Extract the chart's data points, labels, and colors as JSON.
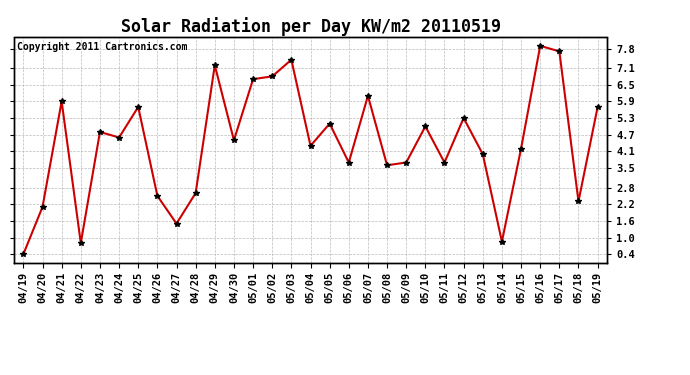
{
  "title": "Solar Radiation per Day KW/m2 20110519",
  "copyright": "Copyright 2011 Cartronics.com",
  "dates": [
    "04/19",
    "04/20",
    "04/21",
    "04/22",
    "04/23",
    "04/24",
    "04/25",
    "04/26",
    "04/27",
    "04/28",
    "04/29",
    "04/30",
    "05/01",
    "05/02",
    "05/03",
    "05/04",
    "05/05",
    "05/06",
    "05/07",
    "05/08",
    "05/09",
    "05/10",
    "05/11",
    "05/12",
    "05/13",
    "05/14",
    "05/15",
    "05/16",
    "05/17",
    "05/18",
    "05/19"
  ],
  "values": [
    0.4,
    2.1,
    5.9,
    0.8,
    4.8,
    4.6,
    5.7,
    2.5,
    1.5,
    2.6,
    7.2,
    4.5,
    6.7,
    6.8,
    7.4,
    4.3,
    5.1,
    3.7,
    6.1,
    3.6,
    3.7,
    5.0,
    3.7,
    5.3,
    4.0,
    0.85,
    4.2,
    7.9,
    7.7,
    2.3,
    5.7
  ],
  "line_color": "#cc0000",
  "marker": "*",
  "marker_color": "#000000",
  "bg_color": "#ffffff",
  "grid_color": "#bbbbbb",
  "yticks": [
    0.4,
    1.0,
    1.6,
    2.2,
    2.8,
    3.5,
    4.1,
    4.7,
    5.3,
    5.9,
    6.5,
    7.1,
    7.8
  ],
  "ylim": [
    0.1,
    8.2
  ],
  "title_fontsize": 12,
  "copyright_fontsize": 7,
  "tick_fontsize": 7.5
}
